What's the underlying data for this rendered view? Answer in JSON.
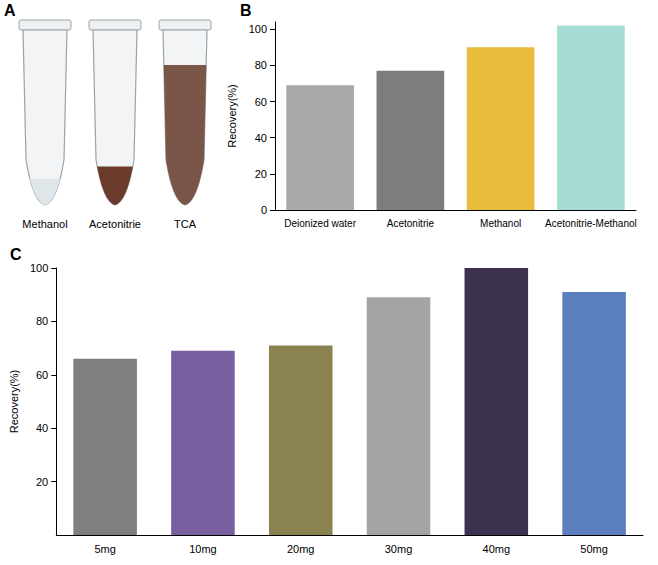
{
  "photo": {
    "panel": "A",
    "labels": [
      "Methanol",
      "Acetonitrie",
      "TCA"
    ]
  },
  "chart_data": [
    {
      "panel": "B",
      "type": "bar",
      "categories": [
        "Deionized water",
        "Acetonitrie",
        "Methanol",
        "Acetonitrie-Methanol"
      ],
      "values": [
        69,
        77,
        90,
        102
      ],
      "colors": [
        "#a9a8ab",
        "#7d7c7e",
        "#e9bb3a",
        "#a5ddd4"
      ],
      "y_label": "Recovery(%)",
      "ylim": [
        0,
        104
      ],
      "yticks": [
        0,
        20,
        40,
        60,
        80,
        100
      ],
      "grid": false
    },
    {
      "panel": "C",
      "type": "bar",
      "categories": [
        "5mg",
        "10mg",
        "20mg",
        "30mg",
        "40mg",
        "50mg"
      ],
      "values": [
        66,
        69,
        71,
        89,
        100,
        91
      ],
      "colors": [
        "#7f7f7f",
        "#7a5fa0",
        "#8a8350",
        "#a4a4a4",
        "#3d3350",
        "#5b7fbc"
      ],
      "y_label": "Recovery(%)",
      "ylim": [
        0,
        100
      ],
      "yticks": [
        20,
        40,
        60,
        80,
        100
      ],
      "grid": false
    }
  ]
}
